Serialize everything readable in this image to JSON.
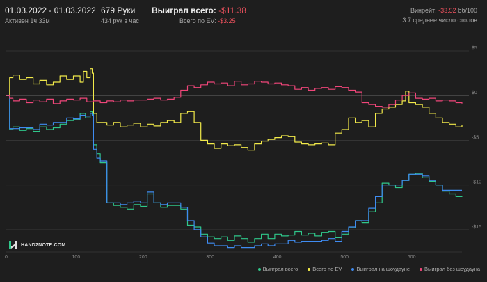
{
  "header": {
    "date_range": "01.03.2022 - 01.03.2022",
    "active": "Активен 1ч 33м",
    "hands": "679 Руки",
    "hands_per_hour": "434 рук в час",
    "won_total_label": "Выиграл всего:",
    "won_total_value": "-$11.38",
    "ev_label": "Всего по EV:",
    "ev_value": "-$3.25",
    "winrate_label": "Винрейт:",
    "winrate_value": "-33.52",
    "winrate_unit": "бб/100",
    "avg_tables": "3.7 среднее число столов",
    "colors": {
      "negative": "#f0525e"
    }
  },
  "logo": {
    "text": "HAND2NOTE.COM"
  },
  "legend": [
    {
      "label": "Выиграл всего",
      "color": "#2fc78a"
    },
    {
      "label": "Всего по EV",
      "color": "#f2ea4a"
    },
    {
      "label": "Выиграл на шоудауне",
      "color": "#3f8cf2"
    },
    {
      "label": "Выиграл без шоудауна",
      "color": "#f0467a"
    }
  ],
  "chart_data": {
    "type": "line",
    "xlim": [
      0,
      679
    ],
    "ylim": [
      -17.5,
      5
    ],
    "x_ticks": [
      0,
      100,
      200,
      300,
      400,
      500,
      600
    ],
    "y_ticks": [
      5,
      0,
      -5,
      -10,
      -15
    ],
    "y_tick_labels": [
      "$5",
      "$0",
      "-$5",
      "-$10",
      "-$15"
    ],
    "grid": "horizontal",
    "legend_position": "bottom-right",
    "series": [
      {
        "name": "Выиграл всего",
        "color": "#2fc78a",
        "x": [
          0,
          5,
          10,
          20,
          30,
          40,
          50,
          60,
          70,
          80,
          90,
          100,
          110,
          118,
          125,
          128,
          130,
          135,
          140,
          150,
          160,
          170,
          180,
          190,
          200,
          210,
          220,
          230,
          240,
          260,
          270,
          280,
          290,
          300,
          310,
          320,
          330,
          340,
          350,
          360,
          370,
          380,
          390,
          400,
          410,
          420,
          430,
          440,
          450,
          460,
          470,
          480,
          490,
          500,
          510,
          520,
          530,
          540,
          550,
          560,
          570,
          580,
          590,
          600,
          610,
          620,
          630,
          640,
          650,
          660,
          670,
          679
        ],
        "y": [
          0,
          -3.8,
          -3.5,
          -3.9,
          -3.7,
          -4.0,
          -3.5,
          -3.8,
          -3.6,
          -3.2,
          -2.8,
          -2.7,
          -2.0,
          -2.5,
          -1.8,
          -2.0,
          -5.5,
          -6.5,
          -7.5,
          -12.0,
          -12.3,
          -12.5,
          -12.7,
          -12.2,
          -12.4,
          -11.0,
          -12.0,
          -12.5,
          -12.3,
          -12.7,
          -14.5,
          -14.7,
          -15.5,
          -15.8,
          -16.0,
          -15.8,
          -16.2,
          -15.7,
          -16.0,
          -16.4,
          -16.0,
          -15.5,
          -16.0,
          -15.5,
          -15.7,
          -15.6,
          -15.2,
          -15.6,
          -15.4,
          -15.7,
          -15.3,
          -15.2,
          -15.9,
          -15.5,
          -14.8,
          -14.0,
          -14.2,
          -13.0,
          -12.0,
          -9.8,
          -10.0,
          -10.3,
          -9.5,
          -8.8,
          -8.7,
          -9.2,
          -9.6,
          -10.0,
          -10.7,
          -11.0,
          -11.3,
          -11.2
        ]
      },
      {
        "name": "Всего по EV",
        "color": "#f2ea4a",
        "x": [
          0,
          5,
          10,
          20,
          30,
          40,
          50,
          60,
          70,
          80,
          90,
          100,
          110,
          115,
          120,
          125,
          128,
          130,
          135,
          140,
          150,
          160,
          170,
          180,
          190,
          200,
          210,
          220,
          230,
          240,
          250,
          260,
          270,
          280,
          290,
          300,
          310,
          320,
          330,
          340,
          350,
          360,
          370,
          380,
          390,
          400,
          410,
          420,
          430,
          440,
          450,
          460,
          470,
          480,
          490,
          500,
          510,
          520,
          530,
          540,
          550,
          560,
          570,
          580,
          590,
          595,
          600,
          610,
          620,
          630,
          640,
          650,
          660,
          670,
          679
        ],
        "y": [
          0,
          2.0,
          2.3,
          1.8,
          2.0,
          1.3,
          1.7,
          1.2,
          1.5,
          2.2,
          1.8,
          2.2,
          1.5,
          2.7,
          2.0,
          3.0,
          2.5,
          -2.0,
          -3.0,
          -3.0,
          -3.3,
          -3.0,
          -3.5,
          -3.3,
          -3.1,
          -3.5,
          -3.2,
          -3.4,
          -3.0,
          -2.8,
          -3.0,
          -2.0,
          -1.8,
          -3.0,
          -5.0,
          -5.4,
          -5.9,
          -5.4,
          -5.6,
          -5.5,
          -5.8,
          -6.1,
          -5.4,
          -5.1,
          -4.9,
          -4.7,
          -4.5,
          -4.6,
          -5.2,
          -5.4,
          -5.5,
          -5.4,
          -5.3,
          -5.5,
          -4.2,
          -3.8,
          -2.5,
          -3.0,
          -2.8,
          -3.5,
          -2.0,
          -1.5,
          -1.3,
          -1.0,
          -0.6,
          0.5,
          -0.8,
          -1.0,
          -1.3,
          -2.0,
          -2.5,
          -3.0,
          -3.2,
          -3.5,
          -3.3
        ]
      },
      {
        "name": "Выиграл на шоудауне",
        "color": "#3f8cf2",
        "x": [
          0,
          5,
          10,
          20,
          30,
          40,
          50,
          60,
          70,
          80,
          90,
          100,
          110,
          118,
          125,
          128,
          130,
          135,
          140,
          150,
          160,
          170,
          180,
          190,
          200,
          210,
          220,
          230,
          240,
          260,
          270,
          280,
          290,
          300,
          310,
          320,
          330,
          340,
          350,
          360,
          370,
          380,
          390,
          400,
          410,
          420,
          430,
          440,
          450,
          460,
          470,
          480,
          490,
          500,
          510,
          520,
          530,
          540,
          550,
          560,
          570,
          580,
          590,
          600,
          610,
          620,
          630,
          640,
          650,
          660,
          670,
          679
        ],
        "y": [
          0,
          -3.7,
          -3.7,
          -3.6,
          -3.6,
          -3.8,
          -3.2,
          -3.3,
          -3.0,
          -3.0,
          -2.5,
          -2.6,
          -2.2,
          -2.3,
          -2.0,
          -2.2,
          -6.0,
          -7.0,
          -7.3,
          -12.0,
          -12.0,
          -12.2,
          -12.0,
          -11.8,
          -12.0,
          -10.8,
          -12.0,
          -12.2,
          -12.0,
          -12.5,
          -14.0,
          -15.0,
          -15.8,
          -16.5,
          -16.8,
          -16.8,
          -17.0,
          -16.8,
          -17.0,
          -17.0,
          -16.8,
          -16.6,
          -16.8,
          -16.6,
          -16.6,
          -16.2,
          -16.4,
          -16.3,
          -16.3,
          -16.3,
          -16.2,
          -16.0,
          -16.3,
          -15.2,
          -14.7,
          -14.0,
          -14.0,
          -12.6,
          -11.3,
          -10.0,
          -10.0,
          -10.0,
          -9.5,
          -8.8,
          -8.8,
          -9.0,
          -9.5,
          -10.0,
          -10.6,
          -10.6,
          -10.6,
          -10.6
        ]
      },
      {
        "name": "Выиграл без шоудауна",
        "color": "#f0467a",
        "x": [
          0,
          5,
          10,
          20,
          30,
          40,
          50,
          60,
          70,
          80,
          90,
          100,
          110,
          120,
          130,
          140,
          150,
          160,
          170,
          180,
          190,
          200,
          210,
          220,
          230,
          240,
          250,
          260,
          270,
          280,
          290,
          300,
          310,
          320,
          330,
          340,
          350,
          360,
          370,
          380,
          390,
          400,
          410,
          420,
          430,
          440,
          450,
          460,
          470,
          480,
          490,
          500,
          510,
          520,
          530,
          540,
          550,
          560,
          570,
          580,
          590,
          600,
          610,
          620,
          630,
          640,
          650,
          660,
          670,
          679
        ],
        "y": [
          0,
          -0.3,
          -0.6,
          -0.4,
          -0.8,
          -0.5,
          -0.7,
          -0.4,
          -0.9,
          -0.6,
          -0.4,
          -0.5,
          -0.3,
          -0.7,
          -0.6,
          -0.8,
          -0.6,
          -0.7,
          -0.5,
          -0.6,
          -0.5,
          -0.5,
          -0.4,
          -0.3,
          -0.5,
          -0.4,
          -0.2,
          0.6,
          1.1,
          0.9,
          1.2,
          1.5,
          1.3,
          1.4,
          1.1,
          1.6,
          1.2,
          1.3,
          1.6,
          1.5,
          1.3,
          1.4,
          1.2,
          1.1,
          0.7,
          0.9,
          0.6,
          0.8,
          0.9,
          0.7,
          1.0,
          0.9,
          0.6,
          0.4,
          -0.8,
          -1.0,
          -1.2,
          -1.3,
          -1.0,
          -0.5,
          0.0,
          0.3,
          -0.3,
          -0.4,
          -0.3,
          -0.6,
          -0.5,
          -0.6,
          -0.8,
          -0.9
        ]
      }
    ]
  }
}
